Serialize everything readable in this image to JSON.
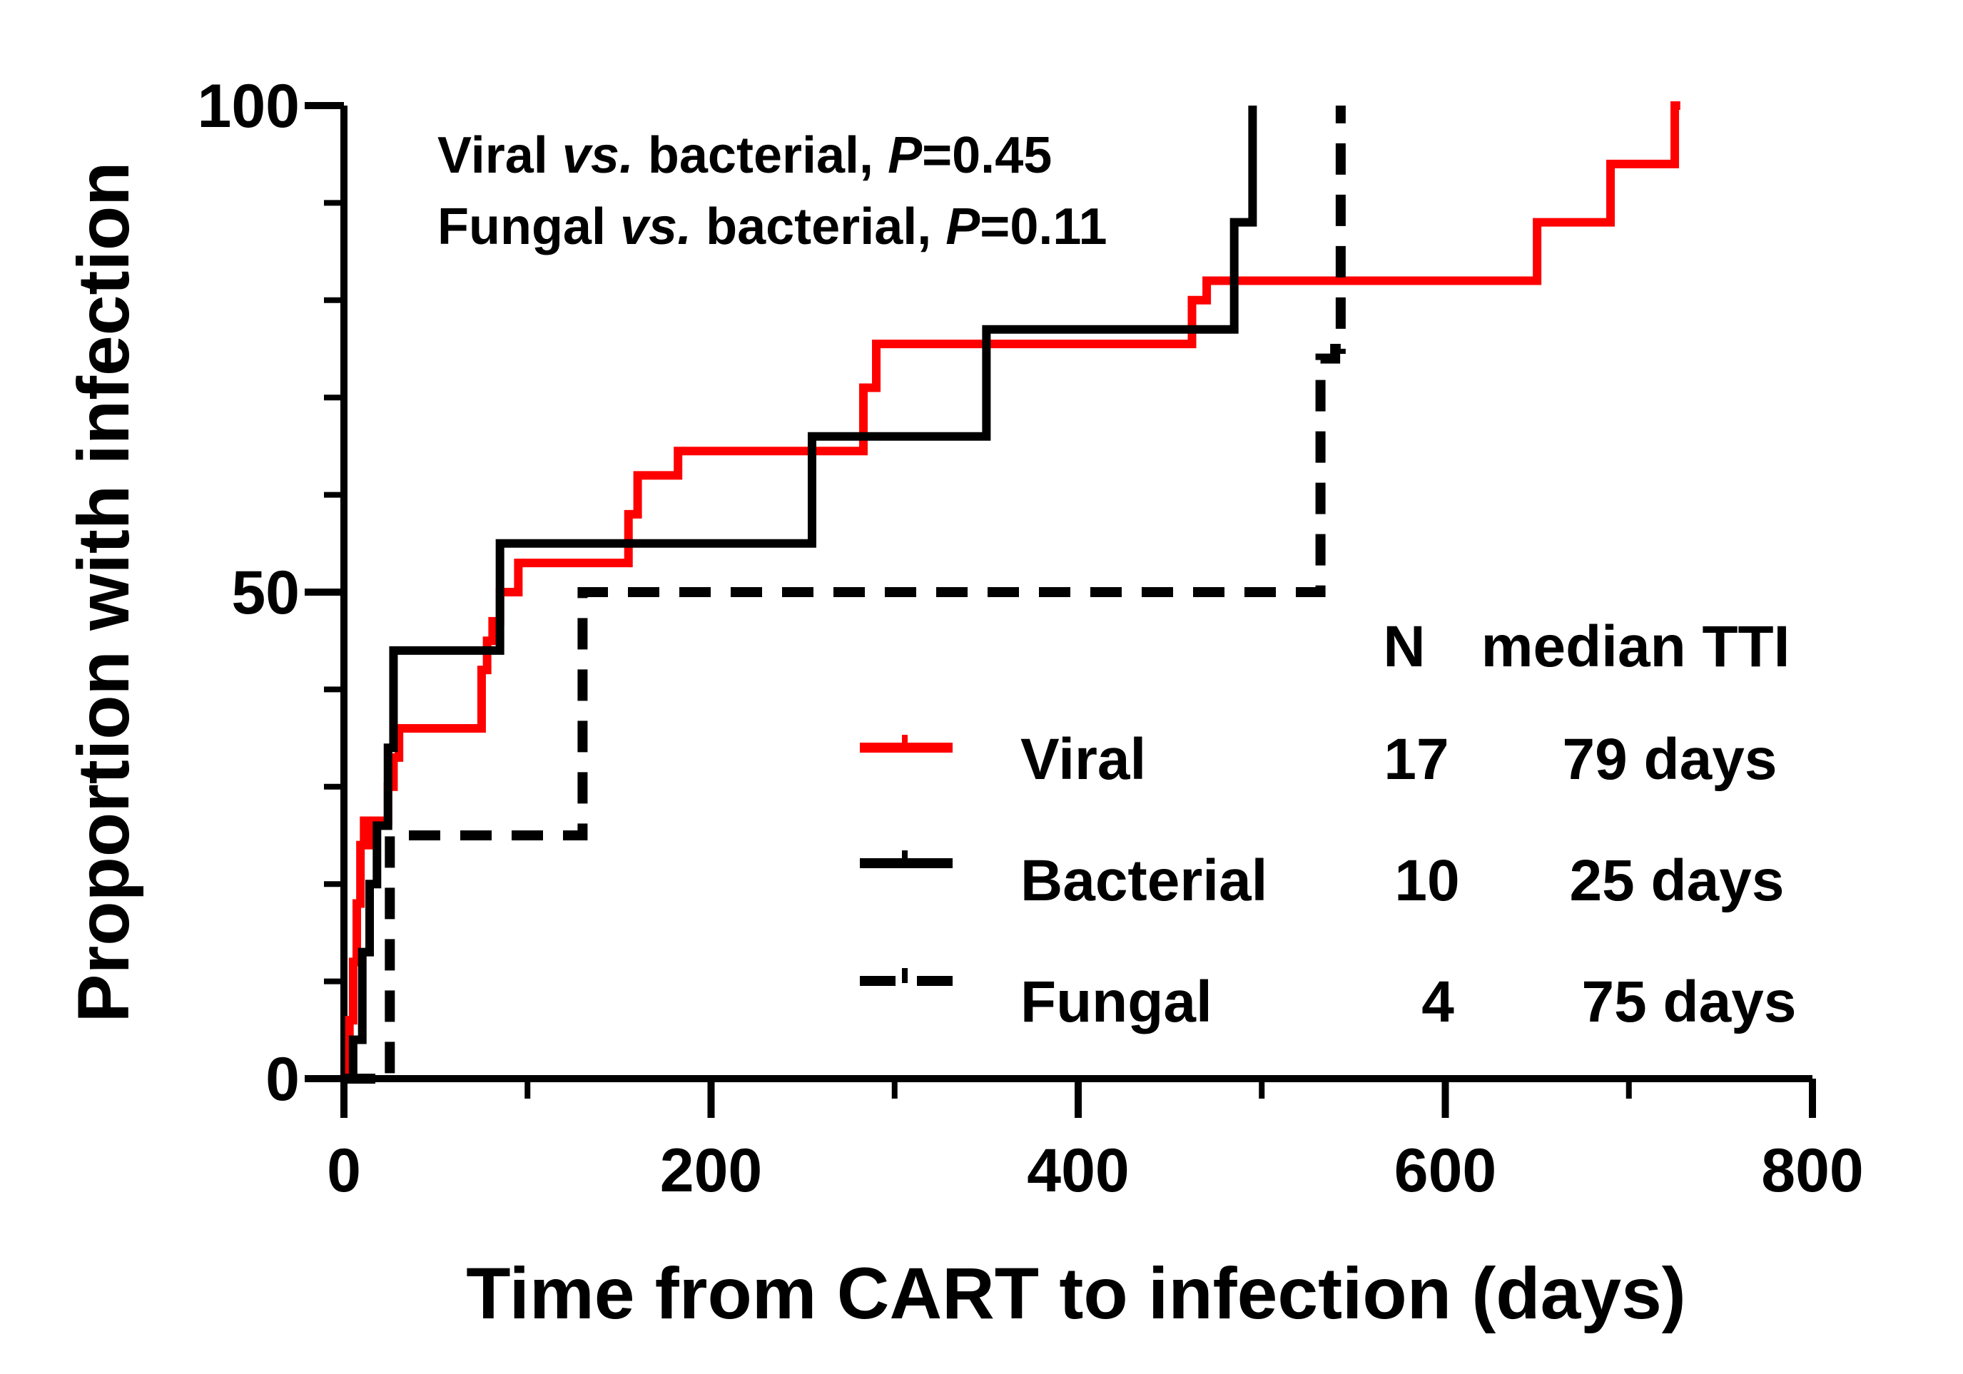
{
  "chart_data": {
    "type": "line",
    "subtype": "step (cumulative incidence)",
    "title": "",
    "xlabel": "Time from CART to infection (days)",
    "ylabel": "Proportion with infection",
    "xlim": [
      0,
      800
    ],
    "ylim": [
      0,
      100
    ],
    "x_ticks": [
      "0",
      "200",
      "400",
      "600",
      "800"
    ],
    "y_ticks": [
      "0",
      "50",
      "100"
    ],
    "annotations": {
      "line1": {
        "prefix": "Viral ",
        "vs": "vs.",
        "middle": " bacterial, ",
        "p": "P",
        "value": "=0.45"
      },
      "line2": {
        "prefix": "Fungal ",
        "vs": "vs.",
        "middle": " bacterial, ",
        "p": "P",
        "value": "=0.11"
      }
    },
    "legend": {
      "header_n": "N",
      "header_median": "median TTI",
      "entries": [
        {
          "name": "Viral",
          "n": "17",
          "median": "79 days"
        },
        {
          "name": "Bacterial",
          "n": "10",
          "median": "25 days"
        },
        {
          "name": "Fungal",
          "n": "4",
          "median": "75 days"
        }
      ]
    },
    "series": [
      {
        "name": "Viral",
        "color": "#ff0000",
        "dash": "solid",
        "x": [
          0,
          3,
          5,
          7,
          9,
          11,
          13,
          15,
          24,
          27,
          30,
          33,
          38,
          75,
          78,
          81,
          85,
          95,
          155,
          160,
          182,
          275,
          283,
          290,
          462,
          470,
          650,
          658,
          690,
          698,
          725,
          728
        ],
        "y": [
          0,
          6,
          12,
          18,
          24,
          26.5,
          24,
          26.5,
          30,
          33,
          36,
          36,
          36,
          42,
          45,
          47,
          50,
          53,
          58,
          62,
          64.5,
          64.5,
          71,
          75.5,
          80,
          82,
          88,
          88,
          94,
          94,
          100,
          100
        ]
      },
      {
        "name": "Bacterial",
        "color": "#000000",
        "dash": "solid",
        "x": [
          0,
          5,
          10,
          14,
          18,
          24,
          27,
          33,
          80,
          85,
          90,
          250,
          255,
          345,
          350,
          480,
          485,
          490,
          495
        ],
        "y": [
          0,
          4,
          13,
          20,
          26,
          34,
          44,
          44,
          44,
          55,
          55,
          55,
          66,
          66,
          77,
          77,
          88,
          88,
          100
        ]
      },
      {
        "name": "Fungal",
        "color": "#000000",
        "dash": "dashed",
        "x": [
          0,
          18,
          25,
          30,
          128,
          130,
          135,
          530,
          532,
          534,
          540,
          543
        ],
        "y": [
          0,
          0,
          25,
          25,
          25,
          50,
          50,
          50,
          74,
          74,
          75,
          100
        ]
      }
    ]
  }
}
